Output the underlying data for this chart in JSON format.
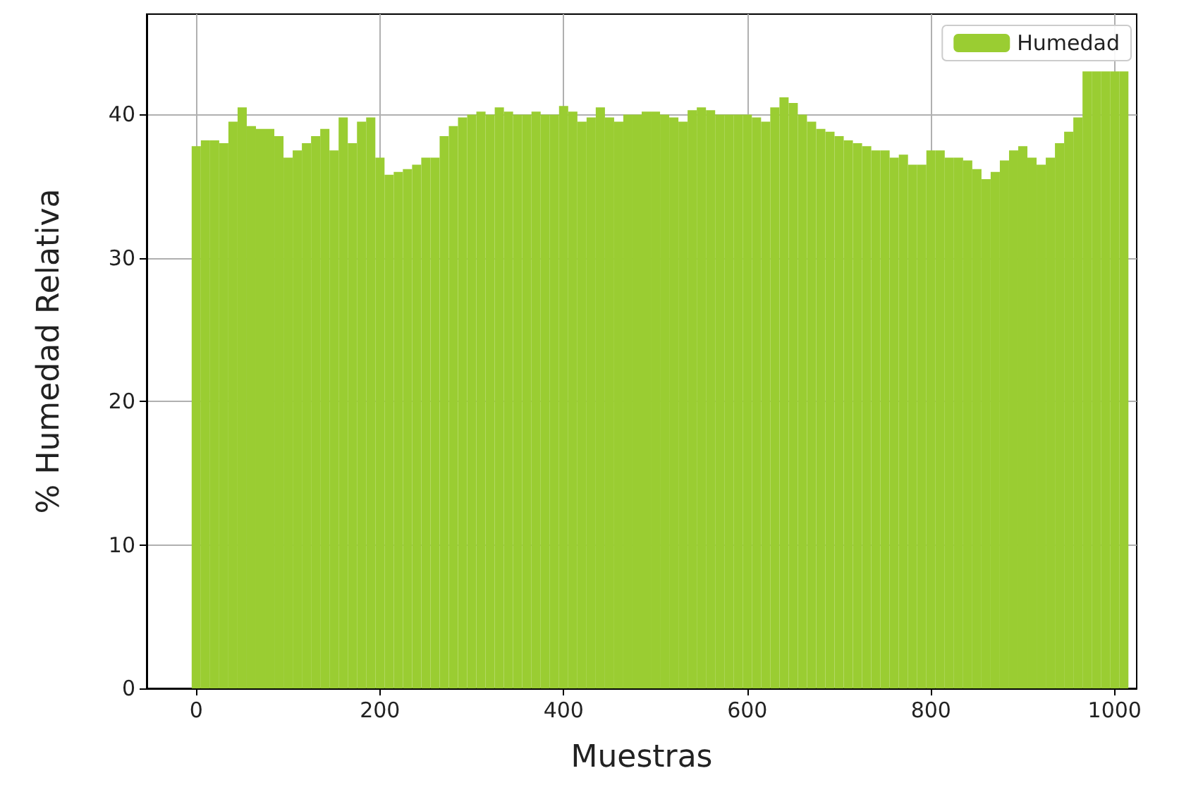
{
  "chart_data": {
    "type": "bar",
    "xlabel": "Muestras",
    "ylabel": "% Humedad Relativa",
    "x": [
      0,
      10,
      20,
      30,
      40,
      50,
      60,
      70,
      80,
      90,
      100,
      110,
      120,
      130,
      140,
      150,
      160,
      170,
      180,
      190,
      200,
      210,
      220,
      230,
      240,
      250,
      260,
      270,
      280,
      290,
      300,
      310,
      320,
      330,
      340,
      350,
      360,
      370,
      380,
      390,
      400,
      410,
      420,
      430,
      440,
      450,
      460,
      470,
      480,
      490,
      500,
      510,
      520,
      530,
      540,
      550,
      560,
      570,
      580,
      590,
      600,
      610,
      620,
      630,
      640,
      650,
      660,
      670,
      680,
      690,
      700,
      710,
      720,
      730,
      740,
      750,
      760,
      770,
      780,
      790,
      800,
      810,
      820,
      830,
      840,
      850,
      860,
      870,
      880,
      890,
      900,
      910,
      920,
      930,
      940,
      950,
      960,
      970,
      980,
      990,
      1000,
      1010
    ],
    "series": [
      {
        "name": "Humedad",
        "color": "#9acd32",
        "values": [
          37.8,
          38.2,
          38.2,
          38,
          39.5,
          40.5,
          39.2,
          39,
          39,
          38.5,
          37,
          37.5,
          38,
          38.5,
          39,
          37.5,
          39.8,
          38,
          39.5,
          39.8,
          37,
          35.8,
          36,
          36.2,
          36.5,
          37,
          37,
          38.5,
          39.2,
          39.8,
          40,
          40.2,
          40,
          40.5,
          40.2,
          40,
          40,
          40.2,
          40,
          40,
          40.6,
          40.2,
          39.5,
          39.8,
          40.5,
          39.8,
          39.5,
          40,
          40,
          40.2,
          40.2,
          40,
          39.8,
          39.5,
          40.3,
          40.5,
          40.3,
          40,
          40,
          40,
          40,
          39.8,
          39.5,
          40.5,
          41.2,
          40.8,
          40,
          39.5,
          39,
          38.8,
          38.5,
          38.2,
          38,
          37.8,
          37.5,
          37.5,
          37,
          37.2,
          36.5,
          36.5,
          37.5,
          37.5,
          37,
          37,
          36.8,
          36.2,
          35.5,
          36,
          36.8,
          37.5,
          37.8,
          37,
          36.5,
          37,
          38,
          38.8,
          39.8,
          43,
          43,
          43,
          43,
          43
        ]
      }
    ],
    "xlim": [
      -54,
      1024
    ],
    "xticks": [
      0,
      200,
      400,
      600,
      800,
      1000
    ],
    "ylim": [
      0,
      47
    ],
    "yticks": [
      0,
      10,
      20,
      30,
      40
    ],
    "grid": true,
    "legend": "top right"
  }
}
